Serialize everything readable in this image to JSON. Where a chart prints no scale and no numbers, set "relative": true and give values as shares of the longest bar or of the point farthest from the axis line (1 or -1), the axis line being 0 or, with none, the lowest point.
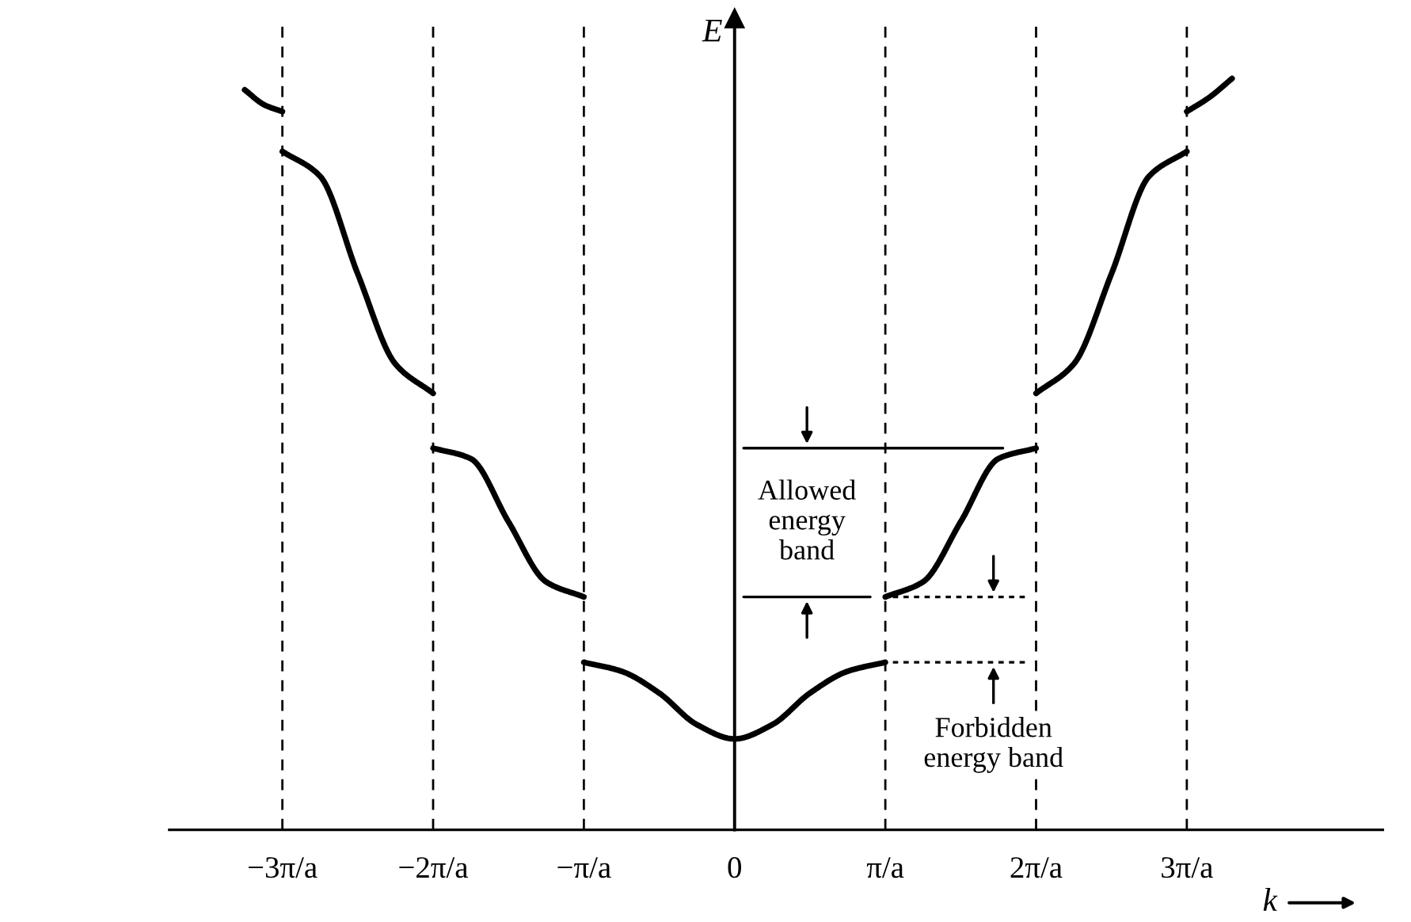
{
  "chart_data": {
    "type": "line",
    "relative": true,
    "xlabel": "k",
    "ylabel": "E",
    "color": "#000000",
    "xlim": [
      -3.75,
      4.3
    ],
    "xticks": [
      {
        "value": -3,
        "label": "−3π/a"
      },
      {
        "value": -2,
        "label": "−2π/a"
      },
      {
        "value": -1,
        "label": "−π/a"
      },
      0,
      {
        "value": 1,
        "label": "π/a"
      },
      {
        "value": 2,
        "label": "2π/a"
      },
      {
        "value": 3,
        "label": "3π/a"
      }
    ],
    "series": [
      {
        "x": [
          -3.25,
          -3.12,
          -3
        ],
        "values": [
          0.985,
          0.965,
          0.956
        ]
      },
      {
        "x": [
          -3,
          -2.75,
          -2.5,
          -2.25,
          -2
        ],
        "values": [
          0.903,
          0.87,
          0.74,
          0.62,
          0.581
        ]
      },
      {
        "x": [
          -2,
          -1.75,
          -1.5,
          -1.25,
          -1
        ],
        "values": [
          0.508,
          0.494,
          0.41,
          0.33,
          0.31
        ]
      },
      {
        "x": [
          -1,
          -0.75,
          -0.5,
          -0.25,
          0,
          0.25,
          0.5,
          0.75,
          1
        ],
        "values": [
          0.223,
          0.211,
          0.182,
          0.14,
          0.121,
          0.14,
          0.182,
          0.211,
          0.223
        ]
      },
      {
        "x": [
          1,
          1.25,
          1.5,
          1.75,
          2
        ],
        "values": [
          0.31,
          0.33,
          0.41,
          0.494,
          0.508
        ]
      },
      {
        "x": [
          2,
          2.25,
          2.5,
          2.75,
          3
        ],
        "values": [
          0.581,
          0.62,
          0.74,
          0.87,
          0.903
        ]
      },
      {
        "x": [
          3,
          3.15,
          3.3
        ],
        "values": [
          0.956,
          0.975,
          1.0
        ]
      },
      {
        "x": [
          0.06,
          1.78
        ],
        "values": [
          0.508,
          0.508
        ],
        "line_style": "solid"
      },
      {
        "x": [
          0.06,
          0.9
        ],
        "values": [
          0.31,
          0.31
        ],
        "line_style": "solid"
      },
      {
        "x": [
          1.05,
          1.94
        ],
        "values": [
          0.31,
          0.31
        ],
        "line_style": "dotted"
      },
      {
        "x": [
          1.05,
          1.94
        ],
        "values": [
          0.223,
          0.223
        ],
        "line_style": "dotted"
      }
    ],
    "ref_lines": [
      {
        "axis": "x",
        "value": -3,
        "line_style": "dashed"
      },
      {
        "axis": "x",
        "value": -2,
        "line_style": "dashed"
      },
      {
        "axis": "x",
        "value": -1,
        "line_style": "dashed"
      },
      {
        "axis": "x",
        "value": 1,
        "line_style": "dashed"
      },
      {
        "axis": "x",
        "value": 2,
        "line_style": "dashed"
      },
      {
        "axis": "x",
        "value": 3,
        "line_style": "dashed"
      }
    ],
    "annotations": [
      "Allowed\nenergy\nband",
      "Forbidden\nenergy band"
    ],
    "grid": false,
    "legend": false
  }
}
